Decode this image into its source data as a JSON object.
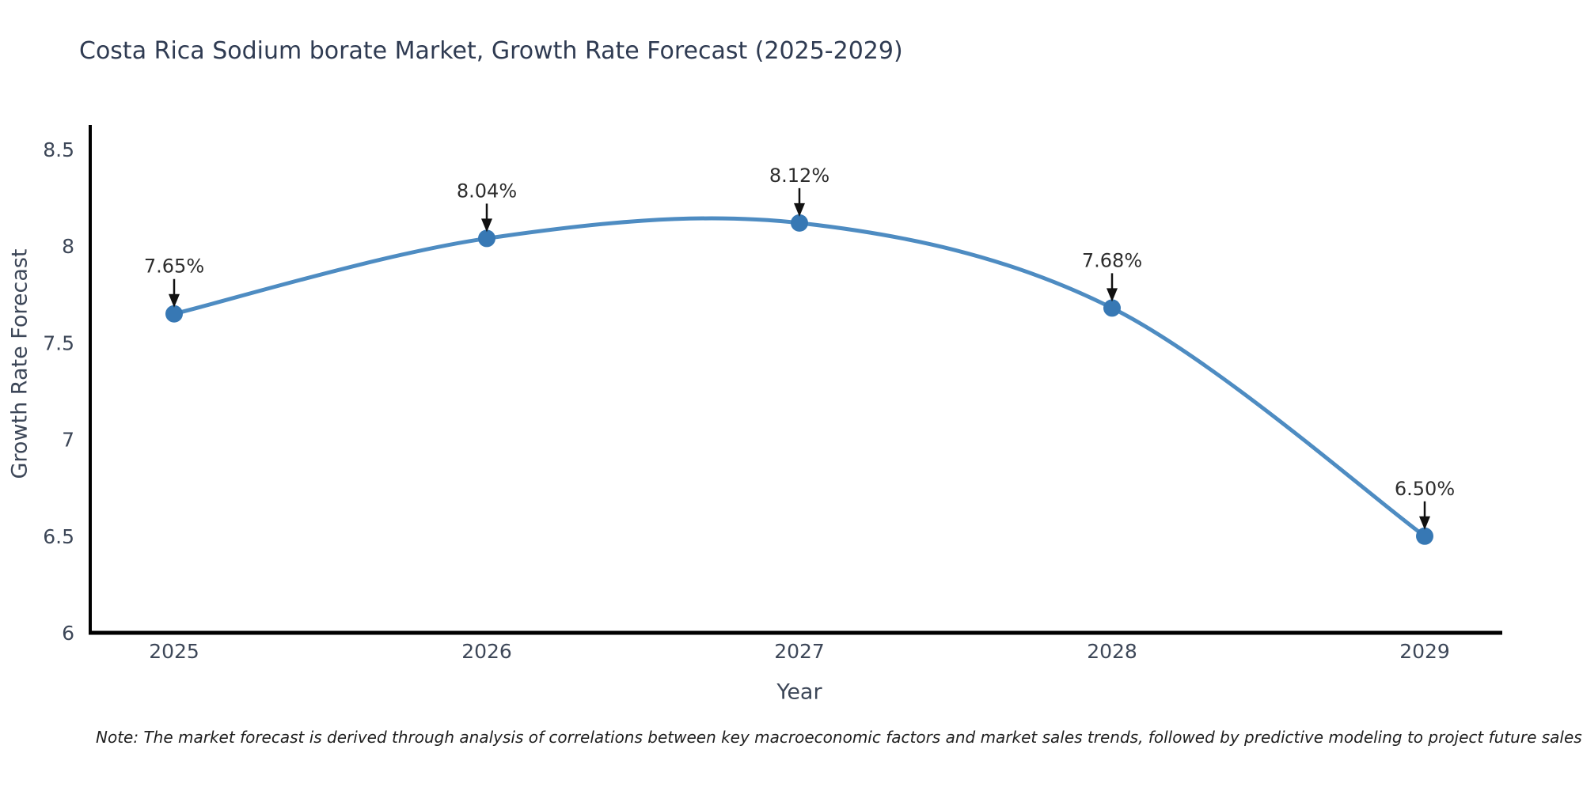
{
  "chart_data": {
    "type": "line",
    "title": "Costa Rica Sodium borate Market, Growth Rate Forecast (2025-2029)",
    "xlabel": "Year",
    "ylabel": "Growth Rate Forecast",
    "x": [
      2025,
      2026,
      2027,
      2028,
      2029
    ],
    "x_tick_labels": [
      "2025",
      "2026",
      "2027",
      "2028",
      "2029"
    ],
    "values": [
      7.65,
      8.04,
      8.12,
      7.68,
      6.5
    ],
    "point_labels": [
      "7.65%",
      "8.04%",
      "8.12%",
      "7.68%",
      "6.50%"
    ],
    "y_ticks": [
      6,
      6.5,
      7,
      7.5,
      8,
      8.5
    ],
    "y_tick_labels": [
      "6",
      "6.5",
      "7",
      "7.5",
      "8",
      "8.5"
    ],
    "ylim": [
      6,
      8.5
    ],
    "grid": false,
    "legend": null,
    "smooth_curve": true,
    "colors": {
      "line": "#4e8cc2",
      "marker": "#3778b4",
      "arrow": "#111111",
      "annotation_text": "#2d2d2d",
      "tick_text": "#3d4758",
      "spine": "#000000"
    },
    "note": "Note: The market forecast is derived through analysis of correlations between key macroeconomic factors and market sales trends, followed by predictive modeling to project future sales"
  }
}
